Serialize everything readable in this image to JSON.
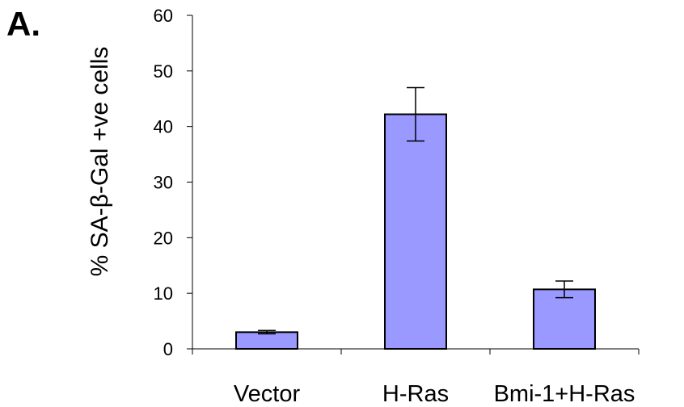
{
  "panel_label": "A.",
  "chart_data": {
    "type": "bar",
    "ylabel": "% SA-β-Gal +ve cells",
    "xlabel": "",
    "categories": [
      "Vector",
      "H-Ras",
      "Bmi-1+H-Ras"
    ],
    "values": [
      3.0,
      42.2,
      10.7
    ],
    "error": [
      0.3,
      4.8,
      1.5
    ],
    "ylim": [
      0,
      60
    ],
    "yticks": [
      0,
      10,
      20,
      30,
      40,
      50,
      60
    ],
    "grid": false,
    "bar_color": "#9999ff"
  }
}
